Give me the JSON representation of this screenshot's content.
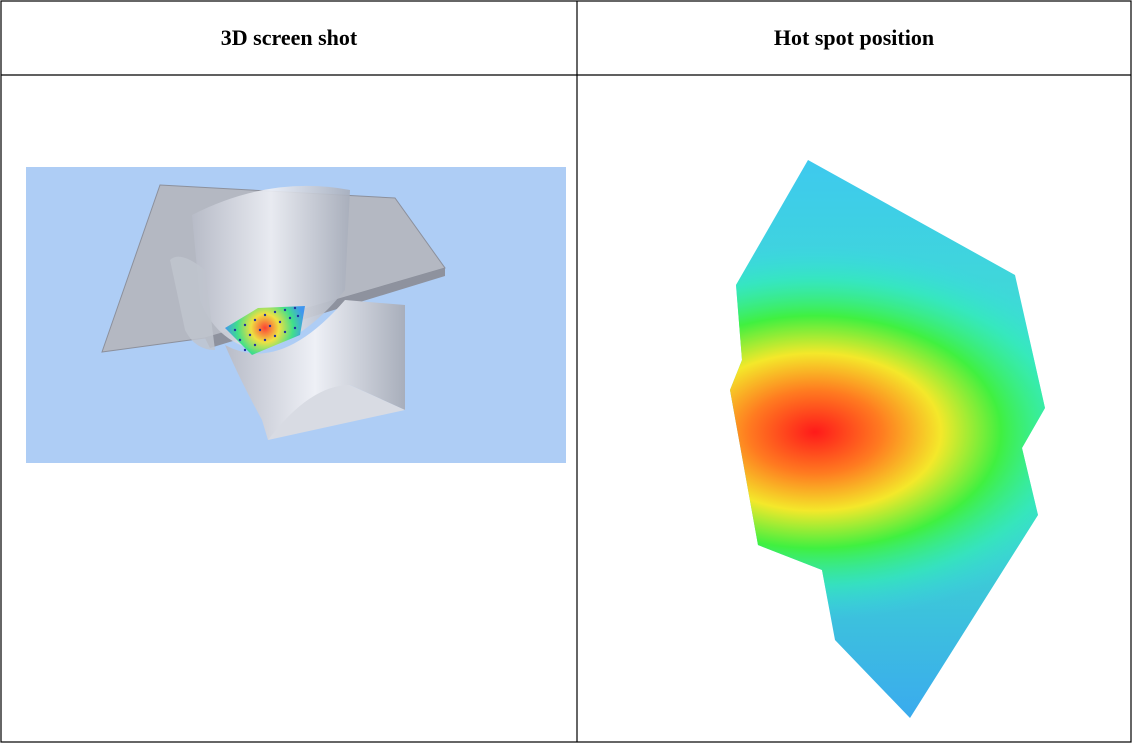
{
  "table": {
    "header": [
      "3D screen shot",
      "Hot spot position"
    ]
  }
}
